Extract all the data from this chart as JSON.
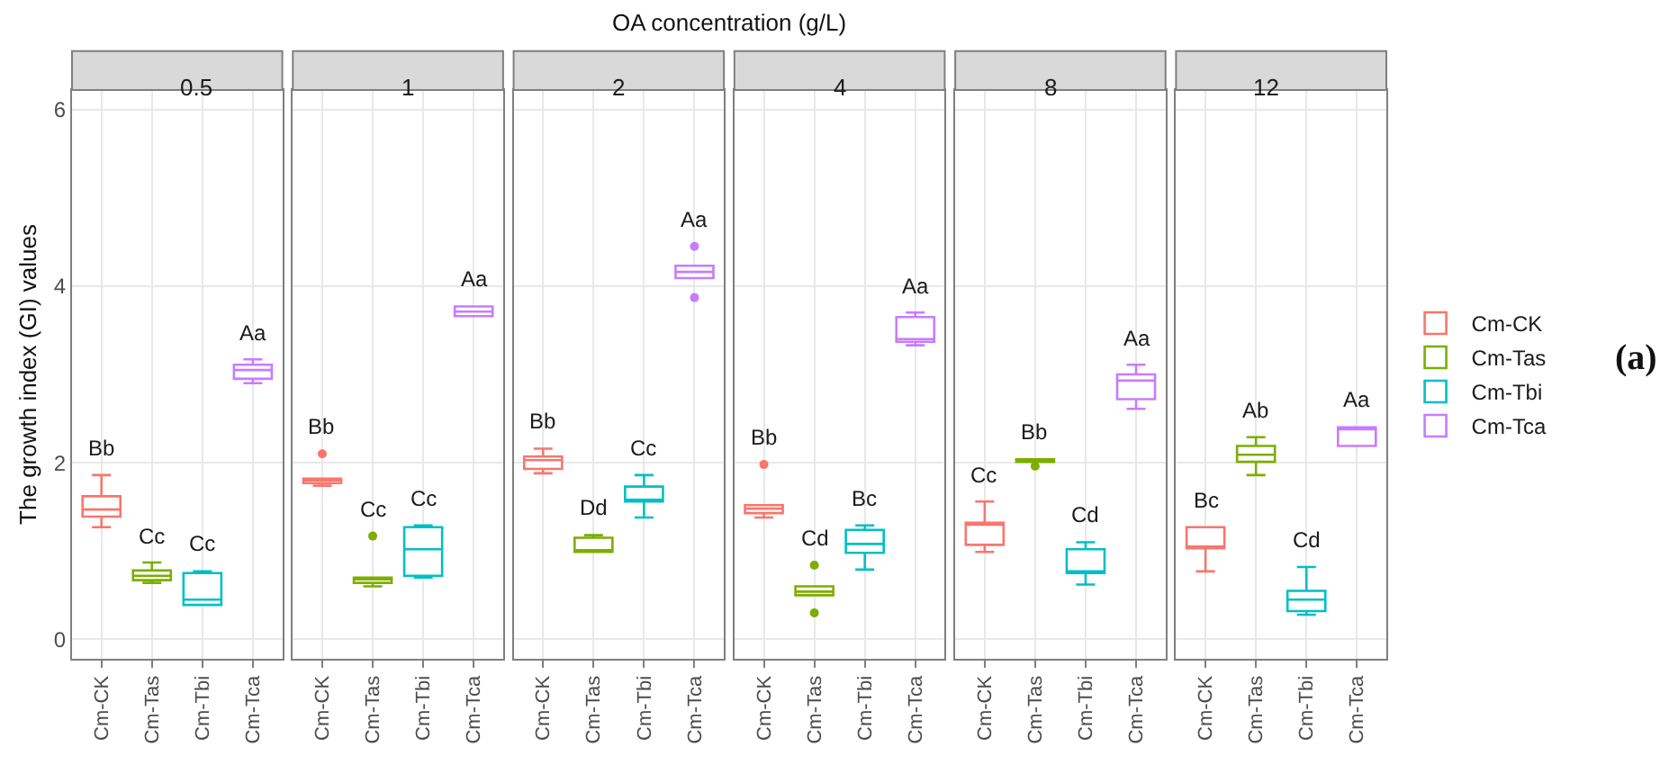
{
  "chart_data": [
    {
      "type": "box",
      "title": "0.5",
      "ylabel": "The growth index (GI) values",
      "categories": [
        "Cm-CK",
        "Cm-Tas",
        "Cm-Tbi",
        "Cm-Tca"
      ],
      "ylim": [
        -0.22,
        6.22
      ],
      "yticks": [
        0,
        2,
        4,
        6
      ],
      "grid": true,
      "series": [
        {
          "color": "#f8766d",
          "boxes": [
            {
              "low": 1.27,
              "q1": 1.39,
              "median": 1.47,
              "q3": 1.62,
              "high": 1.86
            },
            null,
            null,
            null
          ]
        },
        {
          "color": "#7cae00",
          "boxes": [
            null,
            {
              "low": 0.64,
              "q1": 0.67,
              "median": 0.72,
              "q3": 0.78,
              "high": 0.87
            },
            null,
            null
          ]
        },
        {
          "color": "#00bfc4",
          "boxes": [
            null,
            null,
            {
              "low": 0.39,
              "q1": 0.39,
              "median": 0.45,
              "q3": 0.75,
              "high": 0.77
            },
            null
          ]
        },
        {
          "color": "#c77cff",
          "boxes": [
            null,
            null,
            null,
            {
              "low": 2.9,
              "q1": 2.95,
              "median": 3.05,
              "q3": 3.11,
              "high": 3.17
            }
          ]
        }
      ],
      "annotations": [
        "Bb",
        "Cc",
        "Cc",
        "Aa",
        "OA concentration (g/L)"
      ]
    },
    {
      "type": "box",
      "title": "1",
      "categories": [
        "Cm-CK",
        "Cm-Tas",
        "Cm-Tbi",
        "Cm-Tca"
      ],
      "ylim": [
        -0.22,
        6.22
      ],
      "yticks": [
        0,
        2,
        4,
        6
      ],
      "grid": true,
      "tick_labels": "x",
      "series": [
        {
          "color": "#f8766d",
          "boxes": [
            {
              "low": 1.74,
              "q1": 1.77,
              "median": 1.8,
              "q3": 1.82,
              "high": 1.82,
              "outliers": [
                2.1
              ]
            },
            null,
            null,
            null
          ]
        },
        {
          "color": "#7cae00",
          "boxes": [
            null,
            {
              "low": 0.6,
              "q1": 0.64,
              "median": 0.68,
              "q3": 0.7,
              "high": 0.7,
              "outliers": [
                1.17
              ]
            },
            null,
            null
          ]
        },
        {
          "color": "#00bfc4",
          "boxes": [
            null,
            null,
            {
              "low": 0.7,
              "q1": 0.72,
              "median": 1.02,
              "q3": 1.27,
              "high": 1.29
            },
            null
          ]
        },
        {
          "color": "#c77cff",
          "boxes": [
            null,
            null,
            null,
            {
              "low": 3.66,
              "q1": 3.66,
              "median": 3.71,
              "q3": 3.77,
              "high": 3.77
            }
          ]
        }
      ],
      "annotations": [
        "Bb",
        "Cc",
        "Cc",
        "Aa"
      ]
    },
    {
      "type": "box",
      "title": "2",
      "categories": [
        "Cm-CK",
        "Cm-Tas",
        "Cm-Tbi",
        "Cm-Tca"
      ],
      "ylim": [
        -0.22,
        6.22
      ],
      "yticks": [
        0,
        2,
        4,
        6
      ],
      "grid": true,
      "tick_labels": "x",
      "series": [
        {
          "color": "#f8766d",
          "boxes": [
            {
              "low": 1.88,
              "q1": 1.93,
              "median": 2.03,
              "q3": 2.07,
              "high": 2.16
            },
            null,
            null,
            null
          ]
        },
        {
          "color": "#7cae00",
          "boxes": [
            null,
            {
              "low": 0.99,
              "q1": 0.99,
              "median": 0.99,
              "q3": 1.15,
              "high": 1.18
            },
            null,
            null
          ]
        },
        {
          "color": "#00bfc4",
          "boxes": [
            null,
            null,
            {
              "low": 1.38,
              "q1": 1.56,
              "median": 1.58,
              "q3": 1.73,
              "high": 1.86
            },
            null
          ]
        },
        {
          "color": "#c77cff",
          "boxes": [
            null,
            null,
            null,
            {
              "low": 4.09,
              "q1": 4.09,
              "median": 4.16,
              "q3": 4.23,
              "high": 4.23,
              "outliers": [
                4.45,
                3.87
              ]
            }
          ]
        }
      ],
      "annotations": [
        "Bb",
        "Dd",
        "Cc",
        "Aa"
      ]
    },
    {
      "type": "box",
      "title": "4",
      "categories": [
        "Cm-CK",
        "Cm-Tas",
        "Cm-Tbi",
        "Cm-Tca"
      ],
      "ylim": [
        -0.22,
        6.22
      ],
      "yticks": [
        0,
        2,
        4,
        6
      ],
      "grid": true,
      "tick_labels": "x",
      "series": [
        {
          "color": "#f8766d",
          "boxes": [
            {
              "low": 1.38,
              "q1": 1.43,
              "median": 1.48,
              "q3": 1.52,
              "high": 1.52,
              "outliers": [
                1.98
              ]
            },
            null,
            null,
            null
          ]
        },
        {
          "color": "#7cae00",
          "boxes": [
            null,
            {
              "low": 0.5,
              "q1": 0.5,
              "median": 0.54,
              "q3": 0.6,
              "high": 0.6,
              "outliers": [
                0.84,
                0.3
              ]
            },
            null,
            null
          ]
        },
        {
          "color": "#00bfc4",
          "boxes": [
            null,
            null,
            {
              "low": 0.79,
              "q1": 0.98,
              "median": 1.08,
              "q3": 1.24,
              "high": 1.29
            },
            null
          ]
        },
        {
          "color": "#c77cff",
          "boxes": [
            null,
            null,
            null,
            {
              "low": 3.33,
              "q1": 3.37,
              "median": 3.4,
              "q3": 3.65,
              "high": 3.7
            }
          ]
        }
      ],
      "annotations": [
        "Bb",
        "Cd",
        "Bc",
        "Aa"
      ]
    },
    {
      "type": "box",
      "title": "8",
      "categories": [
        "Cm-CK",
        "Cm-Tas",
        "Cm-Tbi",
        "Cm-Tca"
      ],
      "ylim": [
        -0.22,
        6.22
      ],
      "yticks": [
        0,
        2,
        4,
        6
      ],
      "grid": true,
      "tick_labels": "x",
      "series": [
        {
          "color": "#f8766d",
          "boxes": [
            {
              "low": 0.99,
              "q1": 1.07,
              "median": 1.3,
              "q3": 1.32,
              "high": 1.56
            },
            null,
            null,
            null
          ]
        },
        {
          "color": "#7cae00",
          "boxes": [
            null,
            {
              "low": 2.01,
              "q1": 2.01,
              "median": 2.03,
              "q3": 2.04,
              "high": 2.04,
              "outliers": [
                1.96
              ]
            },
            null,
            null
          ]
        },
        {
          "color": "#00bfc4",
          "boxes": [
            null,
            null,
            {
              "low": 0.62,
              "q1": 0.75,
              "median": 0.77,
              "q3": 1.02,
              "high": 1.1
            },
            null
          ]
        },
        {
          "color": "#c77cff",
          "boxes": [
            null,
            null,
            null,
            {
              "low": 2.61,
              "q1": 2.72,
              "median": 2.93,
              "q3": 3.0,
              "high": 3.11
            }
          ]
        }
      ],
      "annotations": [
        "Cc",
        "Bb",
        "Cd",
        "Aa"
      ]
    },
    {
      "type": "box",
      "title": "12",
      "categories": [
        "Cm-CK",
        "Cm-Tas",
        "Cm-Tbi",
        "Cm-Tca"
      ],
      "ylim": [
        -0.22,
        6.22
      ],
      "yticks": [
        0,
        2,
        4,
        6
      ],
      "grid": true,
      "tick_labels": "x",
      "legend": "right",
      "series": [
        {
          "name": "Cm-CK",
          "color": "#f8766d",
          "boxes": [
            {
              "low": 0.77,
              "q1": 1.03,
              "median": 1.05,
              "q3": 1.27,
              "high": 1.27
            },
            null,
            null,
            null
          ]
        },
        {
          "name": "Cm-Tas",
          "color": "#7cae00",
          "boxes": [
            null,
            {
              "low": 1.86,
              "q1": 2.01,
              "median": 2.09,
              "q3": 2.19,
              "high": 2.29
            },
            null,
            null
          ]
        },
        {
          "name": "Cm-Tbi",
          "color": "#00bfc4",
          "boxes": [
            null,
            null,
            {
              "low": 0.28,
              "q1": 0.32,
              "median": 0.45,
              "q3": 0.55,
              "high": 0.82
            },
            null
          ]
        },
        {
          "name": "Cm-Tca",
          "color": "#c77cff",
          "boxes": [
            null,
            null,
            null,
            {
              "low": 2.19,
              "q1": 2.19,
              "median": 2.39,
              "q3": 2.4,
              "high": 2.4
            }
          ]
        }
      ],
      "annotations": [
        "Bc",
        "Ab",
        "Cd",
        "Aa",
        "(a)"
      ]
    }
  ]
}
